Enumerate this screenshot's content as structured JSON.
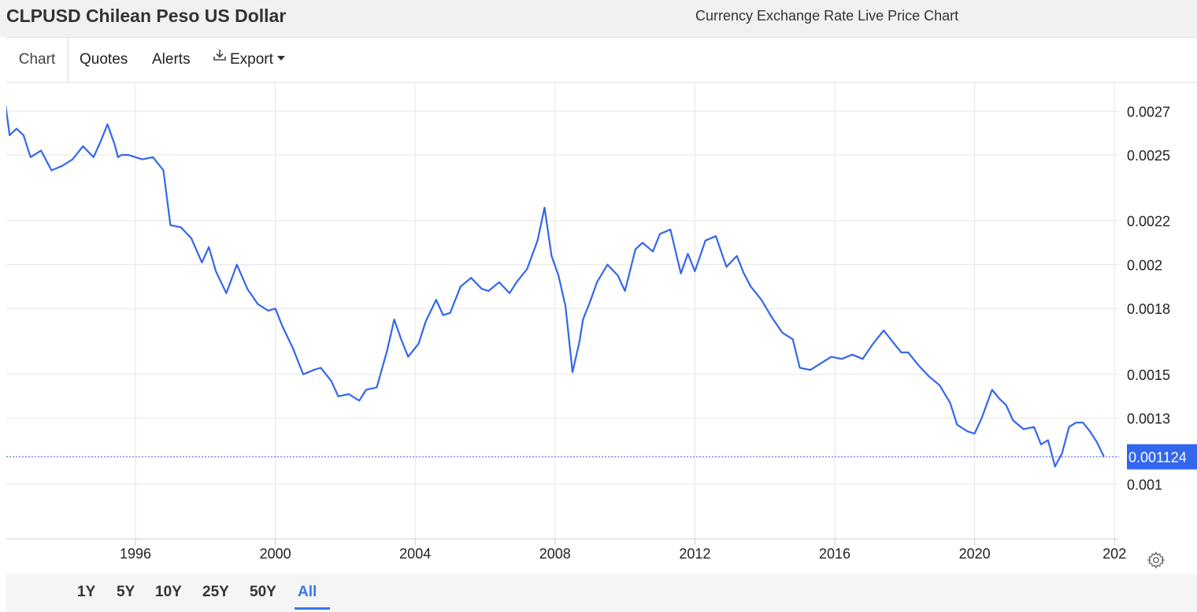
{
  "header": {
    "title": "CLPUSD Chilean Peso US Dollar",
    "subtitle": "Currency Exchange Rate Live Price Chart"
  },
  "toolbar": {
    "tabs": [
      {
        "label": "Chart",
        "icon": null
      },
      {
        "label": "Quotes",
        "icon": null
      },
      {
        "label": "Alerts",
        "icon": null
      },
      {
        "label": "Export",
        "icon": "download-icon"
      }
    ]
  },
  "range_buttons": [
    "1Y",
    "5Y",
    "10Y",
    "25Y",
    "50Y",
    "All"
  ],
  "active_range": "All",
  "colors": {
    "line": "#3366ee",
    "accent": "#3b78e7",
    "grid": "#e6e6e6",
    "last_label_bg": "#3366ee"
  },
  "chart_data": {
    "type": "line",
    "x_ticks": [
      "1996",
      "2000",
      "2004",
      "2008",
      "2012",
      "2016",
      "2020",
      "202"
    ],
    "y_ticks": [
      "0.0027",
      "0.0025",
      "0.0022",
      "0.002",
      "0.0018",
      "0.0015",
      "0.0013",
      "0.001"
    ],
    "y_tick_values": [
      0.0027,
      0.0025,
      0.0022,
      0.002,
      0.0018,
      0.0015,
      0.0013,
      0.001
    ],
    "ylim": [
      0.00075,
      0.00283
    ],
    "xlim": [
      1992.2,
      2024.0
    ],
    "grid": true,
    "last_value": 0.001124,
    "last_value_label": "0.001124",
    "series": [
      {
        "x": [
          1992.2,
          1992.4,
          1992.6,
          1992.8,
          1993.0,
          1993.3,
          1993.6,
          1993.9,
          1994.2,
          1994.5,
          1994.8,
          1995.0,
          1995.2,
          1995.4,
          1995.5,
          1995.6,
          1995.8,
          1996.0,
          1996.2,
          1996.5,
          1996.8,
          1997.0,
          1997.3,
          1997.6,
          1997.9,
          1998.1,
          1998.3,
          1998.6,
          1998.9,
          1999.2,
          1999.5,
          1999.8,
          2000.0,
          2000.2,
          2000.5,
          2000.8,
          2001.1,
          2001.3,
          2001.6,
          2001.8,
          2002.1,
          2002.4,
          2002.6,
          2002.9,
          2003.2,
          2003.4,
          2003.6,
          2003.8,
          2004.1,
          2004.3,
          2004.6,
          2004.8,
          2005.0,
          2005.3,
          2005.6,
          2005.9,
          2006.1,
          2006.4,
          2006.7,
          2006.9,
          2007.2,
          2007.5,
          2007.7,
          2007.9,
          2008.1,
          2008.3,
          2008.5,
          2008.7,
          2008.8,
          2009.0,
          2009.2,
          2009.5,
          2009.8,
          2010.0,
          2010.3,
          2010.5,
          2010.8,
          2011.0,
          2011.3,
          2011.6,
          2011.8,
          2012.0,
          2012.3,
          2012.6,
          2012.9,
          2013.2,
          2013.4,
          2013.6,
          2013.9,
          2014.2,
          2014.5,
          2014.8,
          2015.0,
          2015.3,
          2015.6,
          2015.9,
          2016.2,
          2016.5,
          2016.8,
          2017.1,
          2017.4,
          2017.6,
          2017.9,
          2018.1,
          2018.4,
          2018.7,
          2019.0,
          2019.3,
          2019.5,
          2019.8,
          2020.0,
          2020.2,
          2020.5,
          2020.7,
          2020.9,
          2021.1,
          2021.4,
          2021.7,
          2021.9,
          2022.1,
          2022.3,
          2022.5,
          2022.7,
          2022.9,
          2023.1,
          2023.3,
          2023.5,
          2023.7
        ],
        "values": [
          0.00283,
          0.00259,
          0.00262,
          0.00259,
          0.00249,
          0.00252,
          0.00243,
          0.00245,
          0.00248,
          0.00254,
          0.00249,
          0.00256,
          0.00264,
          0.00255,
          0.00249,
          0.0025,
          0.0025,
          0.00249,
          0.00248,
          0.00249,
          0.00243,
          0.00218,
          0.00217,
          0.00212,
          0.00201,
          0.00208,
          0.00197,
          0.00187,
          0.002,
          0.00189,
          0.00182,
          0.00179,
          0.0018,
          0.00172,
          0.00162,
          0.0015,
          0.00152,
          0.00153,
          0.00147,
          0.0014,
          0.00141,
          0.00138,
          0.00143,
          0.00144,
          0.00161,
          0.00175,
          0.00166,
          0.00158,
          0.00164,
          0.00174,
          0.00184,
          0.00177,
          0.00178,
          0.0019,
          0.00194,
          0.00189,
          0.00188,
          0.00192,
          0.00187,
          0.00192,
          0.00198,
          0.00211,
          0.00226,
          0.00204,
          0.00195,
          0.00181,
          0.00151,
          0.00165,
          0.00175,
          0.00183,
          0.00192,
          0.002,
          0.00195,
          0.00188,
          0.00207,
          0.0021,
          0.00206,
          0.00214,
          0.00216,
          0.00196,
          0.00205,
          0.00197,
          0.00211,
          0.00213,
          0.00199,
          0.00204,
          0.00196,
          0.0019,
          0.00184,
          0.00176,
          0.00169,
          0.00166,
          0.00153,
          0.00152,
          0.00155,
          0.00158,
          0.00157,
          0.00159,
          0.00157,
          0.00164,
          0.0017,
          0.00166,
          0.0016,
          0.0016,
          0.00154,
          0.00149,
          0.00145,
          0.00137,
          0.00127,
          0.00124,
          0.00123,
          0.0013,
          0.00143,
          0.00139,
          0.00136,
          0.00129,
          0.00125,
          0.00126,
          0.00118,
          0.0012,
          0.00108,
          0.00114,
          0.00126,
          0.00128,
          0.00128,
          0.00124,
          0.00119,
          0.001124
        ]
      }
    ]
  }
}
